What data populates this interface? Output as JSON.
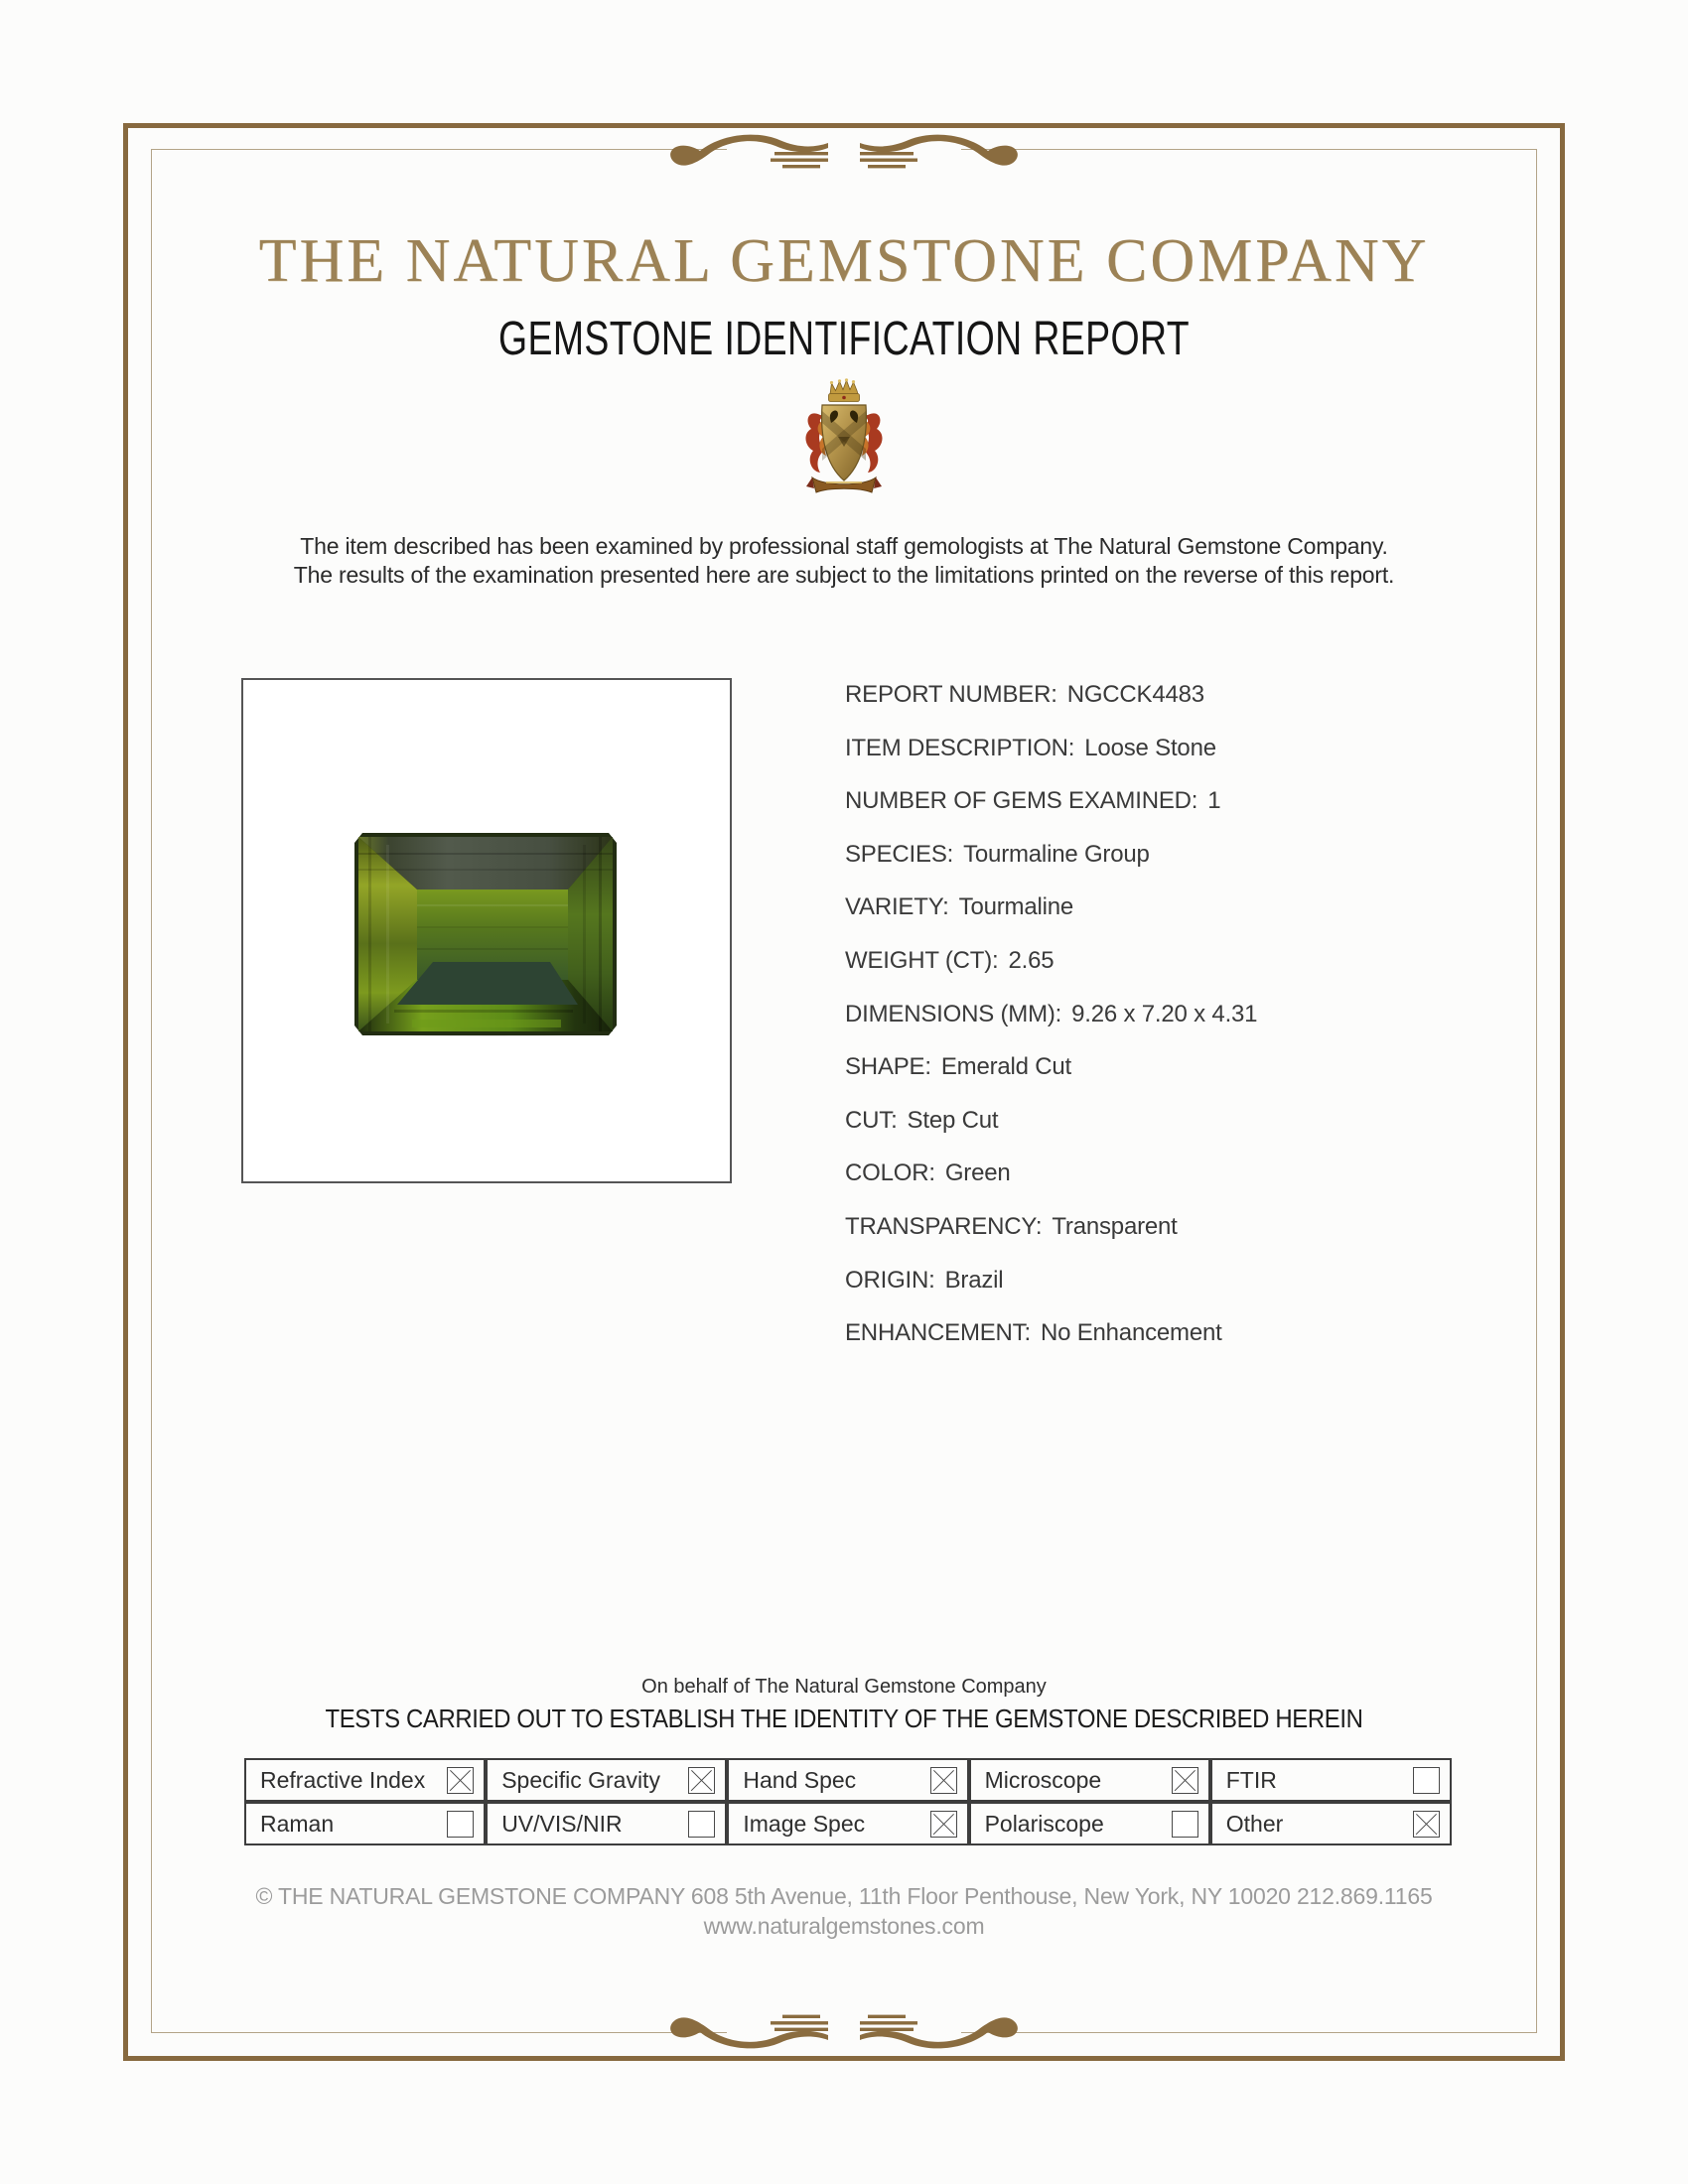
{
  "header": {
    "company": "THE NATURAL GEMSTONE COMPANY",
    "report_type": "GEMSTONE IDENTIFICATION REPORT"
  },
  "intro": {
    "line1": "The item described has been examined by professional staff gemologists at The Natural Gemstone Company.",
    "line2": "The results of the examination presented here are subject to the limitations printed on the reverse of this report."
  },
  "details": [
    {
      "label": "REPORT NUMBER:",
      "value": "NGCCK4483"
    },
    {
      "label": "ITEM DESCRIPTION:",
      "value": "Loose Stone"
    },
    {
      "label": "NUMBER OF GEMS EXAMINED:",
      "value": "1"
    },
    {
      "label": "SPECIES:",
      "value": "Tourmaline Group"
    },
    {
      "label": "VARIETY:",
      "value": "Tourmaline"
    },
    {
      "label": "WEIGHT (CT):",
      "value": "2.65"
    },
    {
      "label": "DIMENSIONS (MM):",
      "value": "9.26 x 7.20 x 4.31"
    },
    {
      "label": "SHAPE:",
      "value": "Emerald Cut"
    },
    {
      "label": "CUT:",
      "value": "Step Cut"
    },
    {
      "label": "COLOR:",
      "value": "Green"
    },
    {
      "label": "TRANSPARENCY:",
      "value": "Transparent"
    },
    {
      "label": "ORIGIN:",
      "value": "Brazil"
    },
    {
      "label": "ENHANCEMENT:",
      "value": "No Enhancement"
    }
  ],
  "tests": {
    "on_behalf": "On behalf of The Natural Gemstone Company",
    "heading": "TESTS CARRIED OUT TO ESTABLISH THE IDENTITY OF THE GEMSTONE DESCRIBED HEREIN",
    "rows": [
      [
        {
          "label": "Refractive Index",
          "checked": true
        },
        {
          "label": "Specific Gravity",
          "checked": true
        },
        {
          "label": "Hand Spec",
          "checked": true
        },
        {
          "label": "Microscope",
          "checked": true
        },
        {
          "label": "FTIR",
          "checked": false
        }
      ],
      [
        {
          "label": "Raman",
          "checked": false
        },
        {
          "label": "UV/VIS/NIR",
          "checked": false
        },
        {
          "label": "Image Spec",
          "checked": true
        },
        {
          "label": "Polariscope",
          "checked": false
        },
        {
          "label": "Other",
          "checked": true
        }
      ]
    ]
  },
  "footer": {
    "copyright": "© THE NATURAL GEMSTONE COMPANY  608 5th Avenue, 11th Floor Penthouse, New York, NY  10020   212.869.1165",
    "website": "www.naturalgemstones.com"
  },
  "gem_photo": {
    "subject": "green emerald-cut tourmaline",
    "colors": {
      "bright_green": "#7d9a1e",
      "mid_green": "#55761e",
      "deep_green": "#3a5a28",
      "pavilion_dark": "#2d4433",
      "bevel_gray": "#4e564a",
      "rim_dark": "#222d12"
    }
  },
  "colors": {
    "border_gold": "#87693f",
    "inner_border": "#b3a488",
    "ornament_gold": "#8a6c3f",
    "title_gold": "#9c8256",
    "footer_gray": "#9b9b9b"
  }
}
